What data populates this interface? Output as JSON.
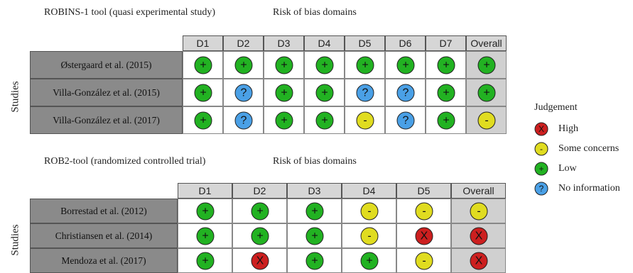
{
  "colors": {
    "low": "#22b222",
    "some_concerns": "#e0dc20",
    "high": "#cc1f1f",
    "no_information": "#4aa0e6"
  },
  "symbols": {
    "low": "+",
    "some_concerns": "-",
    "high": "X",
    "no_information": "?"
  },
  "panel1": {
    "title": "ROBINS-1 tool (quasi experimental study)",
    "domains_title": "Risk of bias domains",
    "ylabel": "Studies",
    "columns": [
      "D1",
      "D2",
      "D3",
      "D4",
      "D5",
      "D6",
      "D7",
      "Overall"
    ],
    "rows": [
      {
        "study": "Østergaard et al. (2015)",
        "judgements": [
          "low",
          "low",
          "low",
          "low",
          "low",
          "low",
          "low",
          "low"
        ]
      },
      {
        "study": "Villa-González et al. (2015)",
        "judgements": [
          "low",
          "no_information",
          "low",
          "low",
          "no_information",
          "no_information",
          "low",
          "low"
        ]
      },
      {
        "study": "Villa-González et al. (2017)",
        "judgements": [
          "low",
          "no_information",
          "low",
          "low",
          "some_concerns",
          "no_information",
          "low",
          "some_concerns"
        ]
      }
    ]
  },
  "panel2": {
    "title": "ROB2-tool (randomized controlled trial)",
    "domains_title": "Risk of bias domains",
    "ylabel": "Studies",
    "columns": [
      "D1",
      "D2",
      "D3",
      "D4",
      "D5",
      "Overall"
    ],
    "rows": [
      {
        "study": "Borrestad et al. (2012)",
        "judgements": [
          "low",
          "low",
          "low",
          "some_concerns",
          "some_concerns",
          "some_concerns"
        ]
      },
      {
        "study": "Christiansen et al. (2014)",
        "judgements": [
          "low",
          "low",
          "low",
          "some_concerns",
          "high",
          "high"
        ]
      },
      {
        "study": "Mendoza et al. (2017)",
        "judgements": [
          "low",
          "high",
          "low",
          "low",
          "some_concerns",
          "high"
        ]
      }
    ]
  },
  "legend": {
    "title": "Judgement",
    "items": [
      {
        "key": "high",
        "label": "High"
      },
      {
        "key": "some_concerns",
        "label": "Some concerns"
      },
      {
        "key": "low",
        "label": "Low"
      },
      {
        "key": "no_information",
        "label": "No information"
      }
    ]
  }
}
